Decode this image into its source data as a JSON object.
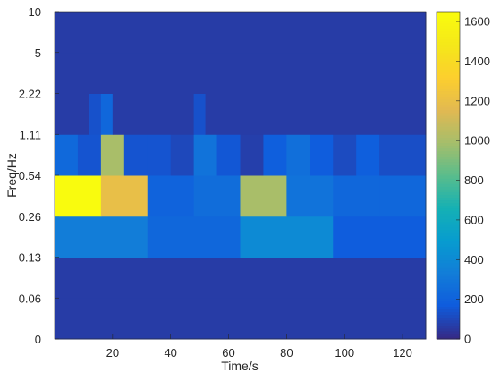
{
  "chart_data": {
    "type": "heatmap",
    "xlabel": "Time/s",
    "ylabel": "Freq/Hz",
    "x_ticks": [
      20,
      40,
      60,
      80,
      100,
      120
    ],
    "x_range": [
      0,
      128
    ],
    "y_tick_labels": [
      "0",
      "0.06",
      "0.13",
      "0.26",
      "0.54",
      "1.11",
      "2.22",
      "5",
      "10"
    ],
    "colorbar": {
      "range": [
        0,
        1650
      ],
      "ticks": [
        0,
        200,
        400,
        600,
        800,
        1000,
        1200,
        1400,
        1600
      ],
      "colormap": "parula"
    },
    "cells": [
      {
        "x0": 0,
        "x1": 128,
        "band": 0,
        "value": 60
      },
      {
        "x0": 0,
        "x1": 128,
        "band": 1,
        "value": 60
      },
      {
        "x0": 0,
        "x1": 32,
        "band": 2,
        "value": 330
      },
      {
        "x0": 32,
        "x1": 64,
        "band": 2,
        "value": 220
      },
      {
        "x0": 64,
        "x1": 96,
        "band": 2,
        "value": 400
      },
      {
        "x0": 96,
        "x1": 128,
        "band": 2,
        "value": 170
      },
      {
        "x0": 0,
        "x1": 16,
        "band": 3,
        "value": 1650
      },
      {
        "x0": 16,
        "x1": 32,
        "band": 3,
        "value": 1200
      },
      {
        "x0": 32,
        "x1": 48,
        "band": 3,
        "value": 200
      },
      {
        "x0": 48,
        "x1": 64,
        "band": 3,
        "value": 250
      },
      {
        "x0": 64,
        "x1": 80,
        "band": 3,
        "value": 1000
      },
      {
        "x0": 80,
        "x1": 96,
        "band": 3,
        "value": 280
      },
      {
        "x0": 96,
        "x1": 112,
        "band": 3,
        "value": 220
      },
      {
        "x0": 112,
        "x1": 128,
        "band": 3,
        "value": 220
      },
      {
        "x0": 0,
        "x1": 8,
        "band": 4,
        "value": 230
      },
      {
        "x0": 8,
        "x1": 16,
        "band": 4,
        "value": 140
      },
      {
        "x0": 16,
        "x1": 24,
        "band": 4,
        "value": 1000
      },
      {
        "x0": 24,
        "x1": 32,
        "band": 4,
        "value": 140
      },
      {
        "x0": 32,
        "x1": 40,
        "band": 4,
        "value": 140
      },
      {
        "x0": 40,
        "x1": 48,
        "band": 4,
        "value": 100
      },
      {
        "x0": 48,
        "x1": 56,
        "band": 4,
        "value": 280
      },
      {
        "x0": 56,
        "x1": 64,
        "band": 4,
        "value": 150
      },
      {
        "x0": 64,
        "x1": 72,
        "band": 4,
        "value": 70
      },
      {
        "x0": 72,
        "x1": 80,
        "band": 4,
        "value": 180
      },
      {
        "x0": 80,
        "x1": 88,
        "band": 4,
        "value": 260
      },
      {
        "x0": 88,
        "x1": 96,
        "band": 4,
        "value": 170
      },
      {
        "x0": 96,
        "x1": 104,
        "band": 4,
        "value": 110
      },
      {
        "x0": 104,
        "x1": 112,
        "band": 4,
        "value": 180
      },
      {
        "x0": 112,
        "x1": 120,
        "band": 4,
        "value": 120
      },
      {
        "x0": 120,
        "x1": 128,
        "band": 4,
        "value": 120
      },
      {
        "x0": 0,
        "x1": 12,
        "band": 5,
        "value": 60
      },
      {
        "x0": 12,
        "x1": 16,
        "band": 5,
        "value": 130
      },
      {
        "x0": 16,
        "x1": 20,
        "band": 5,
        "value": 220
      },
      {
        "x0": 20,
        "x1": 48,
        "band": 5,
        "value": 60
      },
      {
        "x0": 48,
        "x1": 52,
        "band": 5,
        "value": 130
      },
      {
        "x0": 52,
        "x1": 128,
        "band": 5,
        "value": 60
      },
      {
        "x0": 0,
        "x1": 128,
        "band": 6,
        "value": 60
      },
      {
        "x0": 0,
        "x1": 128,
        "band": 7,
        "value": 60
      }
    ]
  }
}
